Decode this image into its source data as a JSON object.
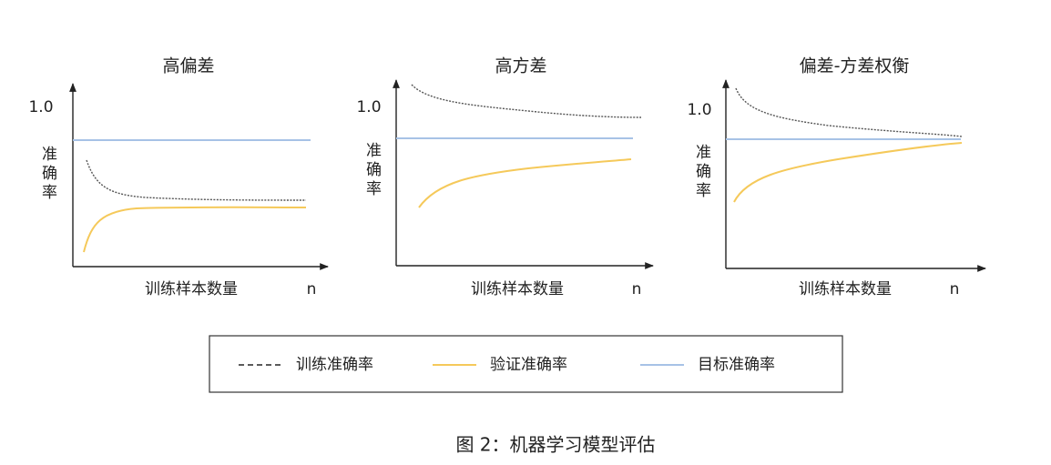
{
  "panels": [
    {
      "title": "高偏差",
      "y_tick": "1.0",
      "y_label": "准确率",
      "x_label": "训练样本数量",
      "x_end": "n"
    },
    {
      "title": "高方差",
      "y_tick": "1.0",
      "y_label": "准确率",
      "x_label": "训练样本数量",
      "x_end": "n"
    },
    {
      "title": "偏差-方差权衡",
      "y_tick": "1.0",
      "y_label": "准确率",
      "x_label": "训练样本数量",
      "x_end": "n"
    }
  ],
  "legend": {
    "items": [
      "训练准确率",
      "验证准确率",
      "目标准确率"
    ]
  },
  "caption": "图 2：机器学习模型评估"
}
